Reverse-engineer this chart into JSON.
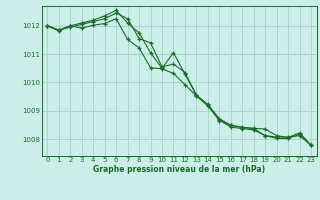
{
  "xlabel": "Graphe pression niveau de la mer (hPa)",
  "background_color": "#cceee8",
  "grid_color": "#aad4cc",
  "line_color": "#1a6b2a",
  "xlim": [
    -0.5,
    23.5
  ],
  "ylim": [
    1007.4,
    1012.7
  ],
  "yticks": [
    1008,
    1009,
    1010,
    1011,
    1012
  ],
  "xticks": [
    0,
    1,
    2,
    3,
    4,
    5,
    6,
    7,
    8,
    9,
    10,
    11,
    12,
    13,
    14,
    15,
    16,
    17,
    18,
    19,
    20,
    21,
    22,
    23
  ],
  "series": [
    [
      1012.0,
      1011.85,
      1012.0,
      1012.1,
      1012.2,
      1012.35,
      1012.55,
      1012.1,
      1011.75,
      1011.05,
      1010.5,
      1011.05,
      1010.3,
      1009.55,
      1009.2,
      1008.65,
      1008.5,
      1008.4,
      1008.38,
      1008.35,
      1008.12,
      1008.05,
      1008.22,
      1007.78
    ],
    [
      1012.0,
      1011.85,
      1011.95,
      1012.05,
      1012.15,
      1012.25,
      1012.45,
      1012.25,
      1011.55,
      1011.4,
      1010.55,
      1010.65,
      1010.35,
      1009.55,
      1009.22,
      1008.72,
      1008.48,
      1008.42,
      1008.37,
      1008.12,
      1008.07,
      1008.07,
      1008.12,
      1007.78
    ],
    [
      1012.0,
      1011.82,
      1012.0,
      1011.92,
      1012.02,
      1012.08,
      1012.25,
      1011.52,
      1011.22,
      1010.52,
      1010.48,
      1010.32,
      1009.92,
      1009.52,
      1009.17,
      1008.67,
      1008.42,
      1008.37,
      1008.32,
      1008.12,
      1008.02,
      1008.02,
      1008.17,
      1007.78
    ]
  ]
}
